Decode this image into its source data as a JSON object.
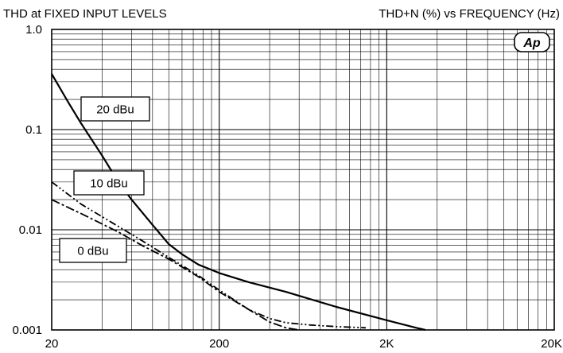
{
  "chart_data": {
    "type": "line",
    "title_left": "THD at FIXED INPUT LEVELS",
    "title_right": "THD+N (%) vs FREQUENCY (Hz)",
    "logo_text": "Ap",
    "x_scale": "log",
    "y_scale": "log",
    "xlim": [
      20,
      20000
    ],
    "ylim": [
      0.001,
      1.0
    ],
    "x_ticks": [
      {
        "value": 20,
        "label": "20"
      },
      {
        "value": 200,
        "label": "200"
      },
      {
        "value": 2000,
        "label": "2K"
      },
      {
        "value": 20000,
        "label": "20K"
      }
    ],
    "y_ticks": [
      {
        "value": 1.0,
        "label": "1.0"
      },
      {
        "value": 0.1,
        "label": "0.1"
      },
      {
        "value": 0.01,
        "label": "0.01"
      },
      {
        "value": 0.001,
        "label": "0.001"
      }
    ],
    "grid": true,
    "series": [
      {
        "name": "20 dBu",
        "style": "solid",
        "x": [
          20,
          25,
          30,
          40,
          50,
          60,
          80,
          100,
          120,
          150,
          200,
          300,
          500,
          1000,
          2000,
          3000,
          3400
        ],
        "y": [
          0.36,
          0.19,
          0.115,
          0.055,
          0.03,
          0.02,
          0.0112,
          0.0072,
          0.0057,
          0.0045,
          0.0037,
          0.003,
          0.0024,
          0.0017,
          0.00125,
          0.00105,
          0.001
        ]
      },
      {
        "name": "10 dBu",
        "style": "dash-dot-dot",
        "x": [
          20,
          30,
          50,
          70,
          100,
          150,
          200,
          300,
          400,
          500,
          700,
          1000,
          1500
        ],
        "y": [
          0.03,
          0.018,
          0.0108,
          0.0077,
          0.0053,
          0.0035,
          0.0025,
          0.0016,
          0.0013,
          0.00118,
          0.00112,
          0.00108,
          0.00105
        ]
      },
      {
        "name": "0 dBu",
        "style": "dash-dot",
        "x": [
          20,
          30,
          50,
          70,
          100,
          150,
          200,
          300,
          400,
          500,
          600
        ],
        "y": [
          0.02,
          0.0145,
          0.0095,
          0.0069,
          0.0051,
          0.0034,
          0.0024,
          0.0016,
          0.0012,
          0.00105,
          0.001
        ]
      }
    ],
    "labels": [
      {
        "series": "20 dBu",
        "text": "20 dBu"
      },
      {
        "series": "10 dBu",
        "text": "10 dBu"
      },
      {
        "series": "0 dBu",
        "text": "0 dBu"
      }
    ]
  }
}
